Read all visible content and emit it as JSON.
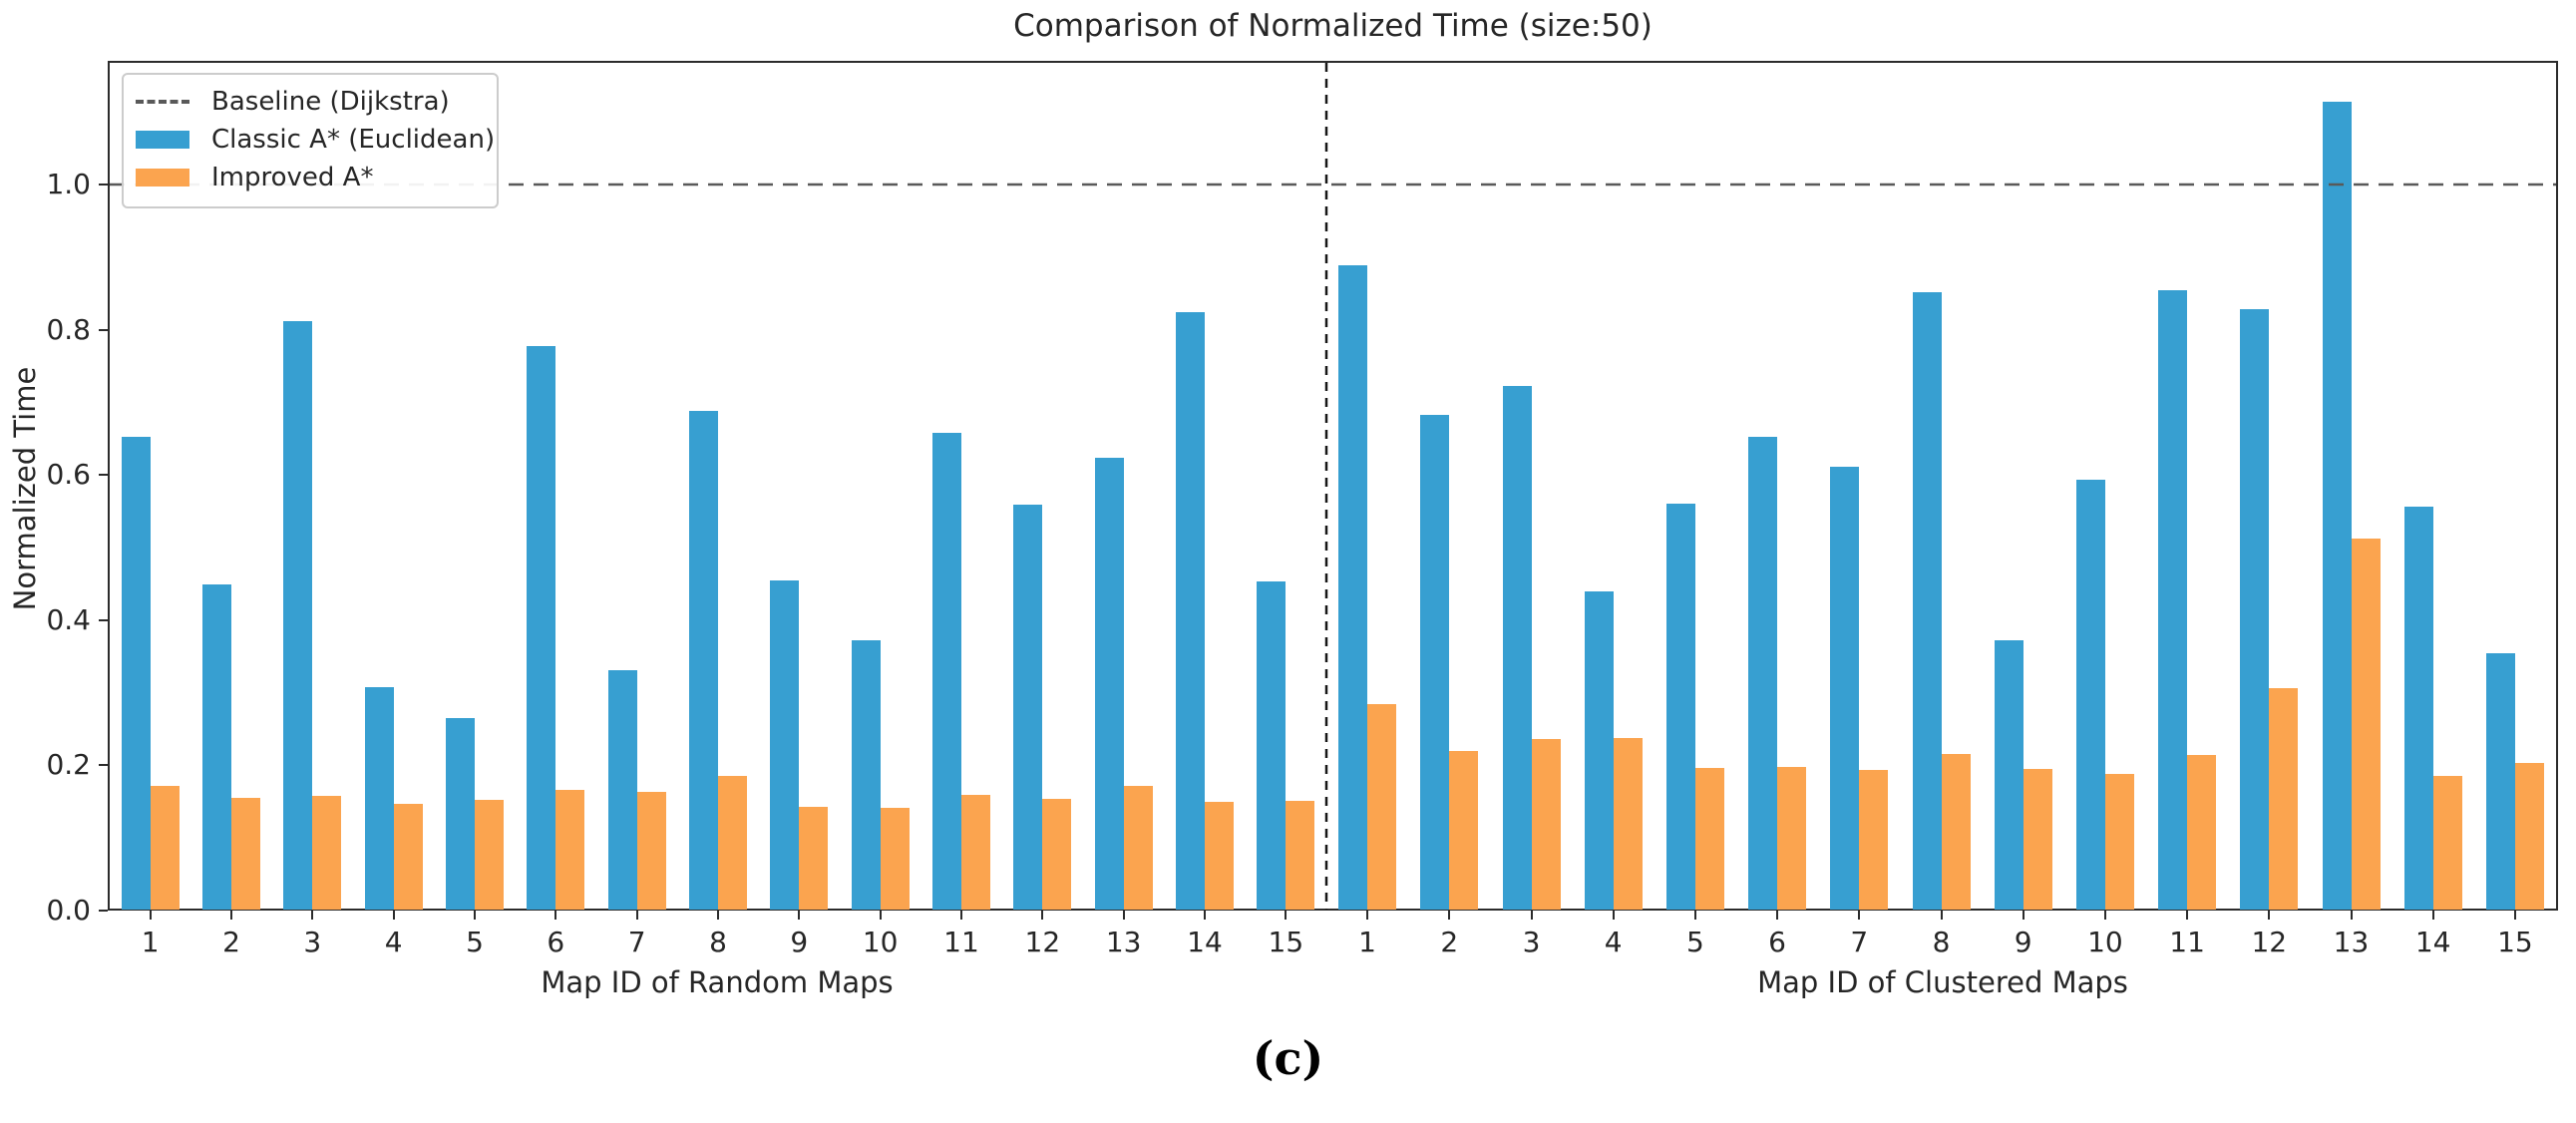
{
  "figure": {
    "title": "Comparison of Normalized Time (size:50)",
    "caption": "(c)"
  },
  "legend": {
    "items": [
      {
        "label": "Baseline (Dijkstra)",
        "sample": "dashed-line",
        "color": "#595959"
      },
      {
        "label": "Classic A* (Euclidean)",
        "sample": "solid-swatch",
        "color": "#379fd1"
      },
      {
        "label": "Improved A*",
        "sample": "solid-swatch",
        "color": "#fba44f"
      }
    ]
  },
  "chart_data": {
    "type": "bar",
    "title": "Comparison of Normalized Time (size:50)",
    "ylabel": "Normalized Time",
    "ylim": [
      0,
      1.17
    ],
    "yticks": [
      "0.0",
      "0.2",
      "0.4",
      "0.6",
      "0.8",
      "1.0"
    ],
    "grid": false,
    "legend_position": "upper-left",
    "baseline": {
      "label": "Baseline (Dijkstra)",
      "value": 1.0,
      "color": "#595959",
      "style": "dashed"
    },
    "separator": {
      "between_groups": true,
      "color": "#161616",
      "style": "dashed"
    },
    "colors": {
      "classic": "#379fd1",
      "improved": "#fba44f"
    },
    "groups": [
      {
        "xlabel": "Map ID of Random Maps",
        "categories": [
          "1",
          "2",
          "3",
          "4",
          "5",
          "6",
          "7",
          "8",
          "9",
          "10",
          "11",
          "12",
          "13",
          "14",
          "15"
        ],
        "series": [
          {
            "name": "Classic A* (Euclidean)",
            "values": [
              0.653,
              0.449,
              0.812,
              0.308,
              0.265,
              0.777,
              0.331,
              0.688,
              0.455,
              0.372,
              0.658,
              0.559,
              0.623,
              0.824,
              0.453
            ]
          },
          {
            "name": "Improved A*",
            "values": [
              0.172,
              0.155,
              0.158,
              0.147,
              0.152,
              0.166,
              0.164,
              0.185,
              0.143,
              0.142,
              0.16,
              0.154,
              0.172,
              0.15,
              0.151
            ]
          }
        ]
      },
      {
        "xlabel": "Map ID of Clustered Maps",
        "categories": [
          "1",
          "2",
          "3",
          "4",
          "5",
          "6",
          "7",
          "8",
          "9",
          "10",
          "11",
          "12",
          "13",
          "14",
          "15"
        ],
        "series": [
          {
            "name": "Classic A* (Euclidean)",
            "values": [
              0.889,
              0.683,
              0.722,
              0.44,
              0.56,
              0.652,
              0.611,
              0.851,
              0.372,
              0.594,
              0.855,
              0.828,
              1.114,
              0.556,
              0.355
            ]
          },
          {
            "name": "Improved A*",
            "values": [
              0.284,
              0.22,
              0.236,
              0.237,
              0.196,
              0.198,
              0.193,
              0.215,
              0.195,
              0.188,
              0.214,
              0.307,
              0.512,
              0.185,
              0.203
            ]
          }
        ]
      }
    ]
  }
}
